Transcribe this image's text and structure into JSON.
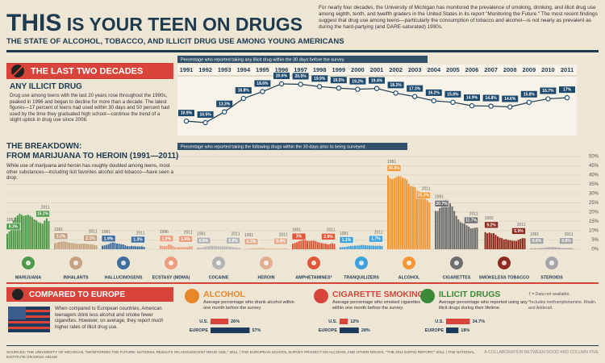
{
  "header": {
    "title_bold": "THIS",
    "title_rest": "IS YOUR TEEN ON DRUGS",
    "subtitle": "THE STATE OF ALCOHOL, TOBACCO, AND ILLICIT DRUG USE AMONG YOUNG AMERICANS",
    "intro": "For nearly four decades, the University of Michigan has monitored the prevalence of smoking, drinking, and illicit drug use among eighth, tenth, and twelfth graders in the United States in its report \"Monitoring the Future.\" The most recent findings suggest that drug use among teens—particularly the consumption of tobacco and alcohol—is not nearly as prevalent as during the hard-partying (and DARE-saturated) 1990s."
  },
  "chart_data": [
    {
      "type": "line",
      "banner": "THE LAST TWO DECADES",
      "title": "ANY ILLICIT DRUG",
      "text": "Drug use among teens with the last 20 years rose throughout the 1990s, peaked in 1996 and began to decline for more than a decade. The latest figures—17 percent of teens had used within 30 days and 50 percent had used by the time they graduated high school—continue the trend of a slight uptick in drug use since 2008.",
      "caption": "Percentage who reported taking any illicit drug within the 30 days before the survey.",
      "color": "#1e4a6e",
      "x": [
        1991,
        1992,
        1993,
        1994,
        1995,
        1996,
        1997,
        1998,
        1999,
        2000,
        2001,
        2002,
        2003,
        2004,
        2005,
        2006,
        2007,
        2008,
        2009,
        2010,
        2011
      ],
      "values": [
        10.9,
        10.5,
        13.3,
        16.8,
        18.6,
        20.6,
        20.5,
        19.9,
        19.5,
        19.2,
        19.4,
        18.2,
        17.3,
        16.2,
        15.8,
        14.9,
        14.8,
        14.6,
        15.8,
        16.7,
        17
      ],
      "value_labels": [
        "10.9%",
        "10.5%",
        "13.3%",
        "16.8%",
        "18.6%",
        "20.6%",
        "20.5%",
        "19.9%",
        "19.5%",
        "19.2%",
        "19.4%",
        "18.2%",
        "17.3%",
        "16.2%",
        "15.8%",
        "14.9%",
        "14.8%",
        "14.6%",
        "15.8%",
        "16.7%",
        "17%"
      ]
    },
    {
      "type": "bar",
      "title": "THE BREAKDOWN:",
      "subtitle": "FROM MARIJUANA TO HEROIN (1991—2011)",
      "text": "While use of marijuana and heroin has roughly doubled among teens, most other substances—including licit favorites alcohol and tobacco—have seen a drop.",
      "caption": "Percentage who reported taking the following drugs within the 30 days prior to being surveyed.",
      "ylim": [
        0,
        50
      ],
      "yticks": [
        {
          "value": 0,
          "label": "0%"
        },
        {
          "value": 5,
          "label": "5%"
        },
        {
          "value": 10,
          "label": "10%"
        },
        {
          "value": 15,
          "label": "15%"
        },
        {
          "value": 20,
          "label": "20%"
        },
        {
          "value": 25,
          "label": "25%"
        },
        {
          "value": 30,
          "label": "30%"
        },
        {
          "value": 35,
          "label": "35%"
        },
        {
          "value": 40,
          "label": "40%"
        },
        {
          "value": 45,
          "label": "45%"
        },
        {
          "value": 50,
          "label": "50%"
        }
      ],
      "groups": [
        {
          "name": "MARIJUANA",
          "color": "#4f9a4a",
          "years": [
            "1991",
            "2011"
          ],
          "labels": [
            "8.3%",
            "15.2%"
          ],
          "values": [
            8.3,
            9.6,
            12.6,
            15.5,
            17.2,
            18.3,
            19.2,
            18.5,
            18.0,
            18.3,
            18.6,
            18.0,
            17.3,
            16.1,
            15.6,
            14.6,
            14.2,
            13.8,
            15.5,
            16.7,
            15.2
          ]
        },
        {
          "name": "INHALANTS",
          "color": "#c4a282",
          "years": [
            "1991",
            "2011"
          ],
          "labels": [
            "3.2%",
            "2.1%"
          ],
          "values": [
            3.2,
            3.6,
            3.9,
            4.1,
            4.3,
            4.2,
            3.9,
            3.5,
            3.3,
            3.3,
            3.1,
            2.9,
            2.9,
            3.0,
            3.1,
            3.0,
            2.8,
            2.7,
            2.6,
            2.4,
            2.1
          ]
        },
        {
          "name": "HALLUCINOGENS",
          "color": "#3f6f9e",
          "years": [
            "1991",
            "2011"
          ],
          "labels": [
            "1.9%",
            "1.3%"
          ],
          "values": [
            1.9,
            2.1,
            2.4,
            2.8,
            3.3,
            3.6,
            3.5,
            3.1,
            3.0,
            2.7,
            2.6,
            2.1,
            1.7,
            1.6,
            1.8,
            1.7,
            1.6,
            1.6,
            1.5,
            1.6,
            1.3
          ]
        },
        {
          "name": "ECSTASY (MDMA)",
          "color": "#ee9c7e",
          "years": [
            "1996",
            "2011"
          ],
          "labels": [
            "1.9%",
            "1.6%"
          ],
          "values": [
            1.9,
            1.7,
            1.6,
            1.8,
            2.6,
            2.5,
            1.7,
            1.1,
            1.0,
            1.1,
            1.1,
            1.2,
            1.1,
            1.1,
            1.5,
            1.6
          ]
        },
        {
          "name": "COCAINE",
          "color": "#b4b4b4",
          "years": [
            "1991",
            "2011"
          ],
          "labels": [
            "0.8%",
            "0.8%"
          ],
          "values": [
            0.8,
            0.8,
            0.9,
            1.1,
            1.4,
            1.6,
            1.8,
            1.8,
            1.8,
            1.7,
            1.6,
            1.5,
            1.5,
            1.6,
            1.5,
            1.5,
            1.3,
            1.1,
            0.9,
            0.9,
            0.8
          ]
        },
        {
          "name": "HEROIN",
          "color": "#e2ae90",
          "years": [
            "1991",
            "2011"
          ],
          "labels": [
            "0.2%",
            "0.4%"
          ],
          "values": [
            0.2,
            0.3,
            0.3,
            0.5,
            0.6,
            0.6,
            0.6,
            0.6,
            0.8,
            0.6,
            0.4,
            0.4,
            0.4,
            0.4,
            0.5,
            0.4,
            0.4,
            0.4,
            0.4,
            0.5,
            0.4
          ]
        },
        {
          "name": "AMPHETAMINES*",
          "color": "#e0583a",
          "years": [
            "1991",
            "2011"
          ],
          "labels": [
            "3%",
            "2.9%"
          ],
          "values": [
            3.0,
            3.4,
            3.8,
            4.4,
            4.7,
            5.2,
            5.0,
            4.5,
            4.5,
            4.6,
            4.6,
            4.4,
            3.9,
            3.6,
            3.3,
            3.1,
            3.0,
            2.6,
            2.9,
            3.3,
            2.9
          ]
        },
        {
          "name": "TRANQUILIZERS",
          "color": "#3ea3dc",
          "years": [
            "1991",
            "2011"
          ],
          "labels": [
            "1.1%",
            "1.7%"
          ],
          "values": [
            1.1,
            1.2,
            1.2,
            1.4,
            1.6,
            1.8,
            1.9,
            1.9,
            2.0,
            2.0,
            2.3,
            2.3,
            2.1,
            2.1,
            2.0,
            2.0,
            2.0,
            1.8,
            1.9,
            1.9,
            1.7
          ]
        },
        {
          "name": "ALCOHOL",
          "color": "#f39633",
          "years": [
            "1991",
            "2011"
          ],
          "labels": [
            "39.8%",
            "25.2%"
          ],
          "values": [
            39.8,
            38.3,
            37.8,
            38.4,
            38.9,
            39.4,
            39.4,
            38.6,
            38.3,
            37.5,
            35.3,
            34.0,
            33.8,
            33.4,
            31.5,
            31.3,
            29.9,
            28.1,
            27.3,
            26.3,
            25.2
          ]
        },
        {
          "name": "CIGARETTES",
          "color": "#6e6e6e",
          "years": [
            "1991",
            "2011"
          ],
          "labels": [
            "20.7%",
            "11.7%"
          ],
          "values": [
            20.7,
            20.6,
            22.2,
            23.3,
            25.2,
            26.6,
            26.4,
            24.7,
            23.1,
            20.6,
            18.0,
            16.1,
            14.6,
            14.1,
            14.1,
            12.9,
            12.2,
            11.3,
            11.3,
            11.6,
            11.7
          ]
        },
        {
          "name": "SMOKELESS TOBACCO",
          "color": "#8e2c1f",
          "years": [
            "1992",
            "2011"
          ],
          "labels": [
            "9.2%",
            "5.9%"
          ],
          "values": [
            9.2,
            8.6,
            9.0,
            8.6,
            8.7,
            7.8,
            6.9,
            6.3,
            6.0,
            5.3,
            5.4,
            5.0,
            4.9,
            4.6,
            4.6,
            4.5,
            5.1,
            5.6,
            6.0,
            5.9
          ]
        },
        {
          "name": "STEROIDS",
          "color": "#a6a6a6",
          "years": [
            "1991",
            "2011"
          ],
          "labels": [
            "0.6%",
            "0.6%"
          ],
          "values": [
            0.6,
            0.5,
            0.6,
            0.6,
            0.6,
            0.7,
            0.8,
            0.8,
            1.0,
            1.1,
            1.1,
            1.2,
            1.0,
            1.0,
            0.9,
            0.7,
            0.6,
            0.7,
            0.6,
            0.7,
            0.6
          ]
        }
      ]
    },
    {
      "type": "hbar",
      "banner": "COMPARED TO EUROPE",
      "text": "When compared to European countries, American teenagers drink less alcohol and smoke fewer cigarettes. However, on average, they report much higher rates of illicit drug use.",
      "categories": [
        "U.S.",
        "EUROPE"
      ],
      "colors": [
        "#d9443a",
        "#1e3a5a"
      ],
      "panels": [
        {
          "title": "ALCOHOL",
          "subtitle": "Average percentage who drank alcohol within one month before the survey.",
          "color": "#e8862a",
          "values": [
            26,
            57
          ],
          "value_labels": [
            "26%",
            "57%"
          ]
        },
        {
          "title": "CIGARETTE SMOKING",
          "subtitle": "Average percentage who smoked cigarettes within one month before the survey.",
          "color": "#d9443a",
          "values": [
            12,
            28
          ],
          "value_labels": [
            "12%",
            "28%"
          ]
        },
        {
          "title": "ILLICIT DRUGS",
          "subtitle": "Average percentage who reported using any illicit drugs during their lifetime.",
          "color": "#3a8a3a",
          "values": [
            34.7,
            18
          ],
          "value_labels": [
            "34.7%",
            "18%"
          ]
        }
      ],
      "notes": [
        "† = Data not available.",
        "*Includes methamphetamine, Ritalin, and Adderall."
      ]
    }
  ],
  "footer": {
    "sources": "SOURCES: THE UNIVERSITY OF MICHIGAN, \"MONITORING THE FUTURE: NATIONAL RESULTS ON ADOLESCENT DRUG USE,\" 2011. | THE EUROPEAN SCHOOL SURVEY PROJECT ON ALCOHOL AND OTHER DRUGS, \"THE 2011 ESPAD REPORT,\" 2011. | THE NATIONAL INSTITUTE ON DRUG ABUSE",
    "credit": "A COLLABORATION BETWEEN GOOD AND COLUMN FIVE"
  }
}
